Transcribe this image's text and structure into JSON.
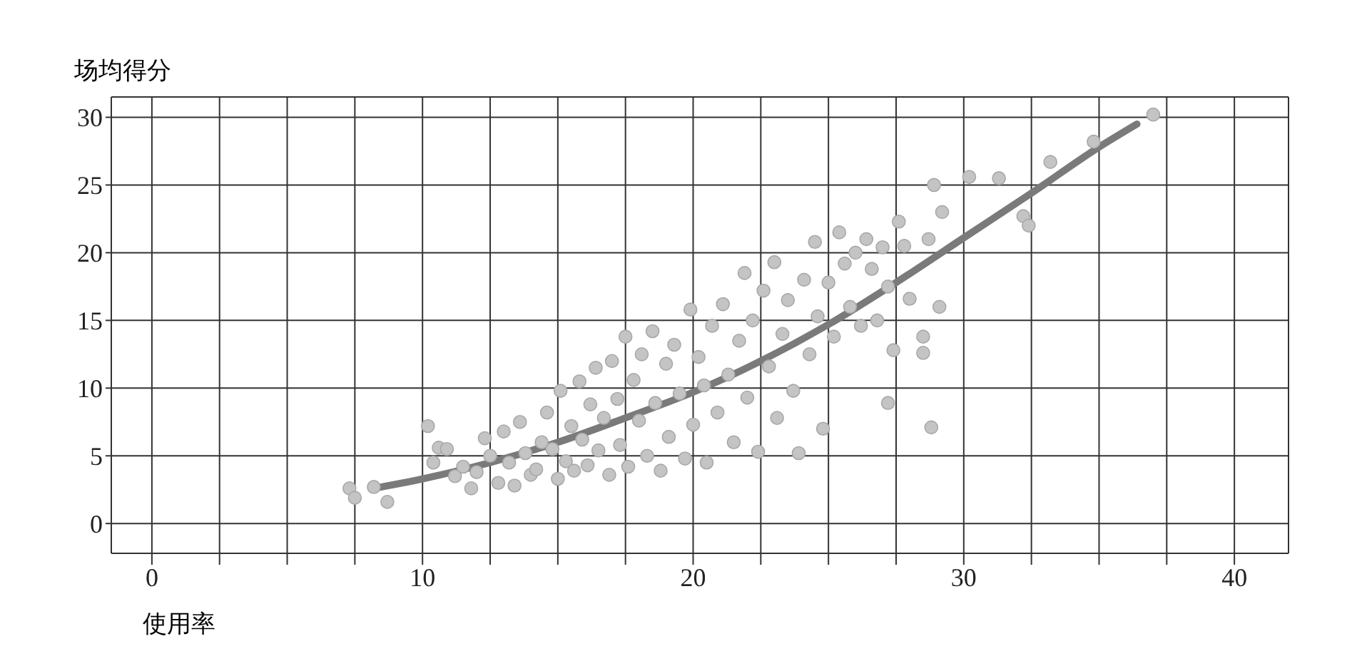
{
  "chart_data": {
    "type": "scatter",
    "xlabel": "使用率",
    "ylabel": "场均得分",
    "xlim": [
      -1.5,
      42
    ],
    "ylim": [
      -2.2,
      31.5
    ],
    "xticks": [
      0,
      {
        "value": 2.5,
        "label": null
      },
      {
        "value": 5,
        "label": null
      },
      {
        "value": 7.5,
        "label": null
      },
      10,
      {
        "value": 12.5,
        "label": null
      },
      {
        "value": 15,
        "label": null
      },
      {
        "value": 17.5,
        "label": null
      },
      20,
      {
        "value": 22.5,
        "label": null
      },
      {
        "value": 25,
        "label": null
      },
      {
        "value": 27.5,
        "label": null
      },
      30,
      {
        "value": 32.5,
        "label": null
      },
      {
        "value": 35,
        "label": null
      },
      {
        "value": 37.5,
        "label": null
      },
      40
    ],
    "yticks": [
      0,
      5,
      10,
      15,
      20,
      25,
      30
    ],
    "grid": true,
    "series": [
      {
        "color": "#c4c4c4",
        "x": [
          7.3,
          7.5,
          8.2,
          8.7,
          10.2,
          10.4,
          10.6,
          10.9,
          11.2,
          11.5,
          11.8,
          12.0,
          12.3,
          12.5,
          12.8,
          13.0,
          13.2,
          13.4,
          13.6,
          13.8,
          14.0,
          14.2,
          14.4,
          14.6,
          14.8,
          15.0,
          15.1,
          15.3,
          15.5,
          15.6,
          15.8,
          15.9,
          16.1,
          16.2,
          16.4,
          16.5,
          16.7,
          16.9,
          17.0,
          17.2,
          17.3,
          17.5,
          17.6,
          17.8,
          18.0,
          18.1,
          18.3,
          18.5,
          18.6,
          18.8,
          19.0,
          19.1,
          19.3,
          19.5,
          19.7,
          19.9,
          20.0,
          20.2,
          20.4,
          20.5,
          20.7,
          20.9,
          21.1,
          21.3,
          21.5,
          21.7,
          21.9,
          22.0,
          22.2,
          22.4,
          22.6,
          22.8,
          23.0,
          23.1,
          23.3,
          23.5,
          23.7,
          23.9,
          24.1,
          24.3,
          24.5,
          24.6,
          24.8,
          25.0,
          25.2,
          25.4,
          25.6,
          25.8,
          26.0,
          26.2,
          26.4,
          26.6,
          26.8,
          27.0,
          27.2,
          27.2,
          27.4,
          27.6,
          27.8,
          28.0,
          28.5,
          28.5,
          28.7,
          28.8,
          28.9,
          29.1,
          29.2,
          30.2,
          31.3,
          32.2,
          32.4,
          33.2,
          34.8,
          37.0
        ],
        "values": [
          2.6,
          1.9,
          2.7,
          1.6,
          7.2,
          4.5,
          5.6,
          5.5,
          3.5,
          4.2,
          2.6,
          3.8,
          6.3,
          5.0,
          3.0,
          6.8,
          4.5,
          2.8,
          7.5,
          5.2,
          3.6,
          4.0,
          6.0,
          8.2,
          5.5,
          3.3,
          9.8,
          4.6,
          7.2,
          3.9,
          10.5,
          6.2,
          4.3,
          8.8,
          11.5,
          5.4,
          7.8,
          3.6,
          12.0,
          9.2,
          5.8,
          13.8,
          4.2,
          10.6,
          7.6,
          12.5,
          5.0,
          14.2,
          8.9,
          3.9,
          11.8,
          6.4,
          13.2,
          9.6,
          4.8,
          15.8,
          7.3,
          12.3,
          10.2,
          4.5,
          14.6,
          8.2,
          16.2,
          11.0,
          6.0,
          13.5,
          18.5,
          9.3,
          15.0,
          5.3,
          17.2,
          11.6,
          19.3,
          7.8,
          14.0,
          16.5,
          9.8,
          5.2,
          18.0,
          12.5,
          20.8,
          15.3,
          7.0,
          17.8,
          13.8,
          21.5,
          19.2,
          16.0,
          20.0,
          14.6,
          21.0,
          18.8,
          15.0,
          20.4,
          17.5,
          8.9,
          12.8,
          22.3,
          20.5,
          16.6,
          13.8,
          12.6,
          21.0,
          7.1,
          25.0,
          16.0,
          23.0,
          25.6,
          25.5,
          22.7,
          22.0,
          26.7,
          28.2,
          30.2
        ]
      },
      {
        "type": "line",
        "color": "#7a7a7a",
        "x": [
          8.2,
          10,
          12.5,
          15,
          17.5,
          20,
          22.5,
          25,
          27.5,
          30,
          32.5,
          35,
          36.4
        ],
        "values": [
          2.6,
          3.3,
          4.5,
          6.0,
          7.8,
          9.7,
          12.0,
          14.7,
          17.8,
          21.1,
          24.4,
          27.8,
          29.5
        ]
      }
    ]
  }
}
